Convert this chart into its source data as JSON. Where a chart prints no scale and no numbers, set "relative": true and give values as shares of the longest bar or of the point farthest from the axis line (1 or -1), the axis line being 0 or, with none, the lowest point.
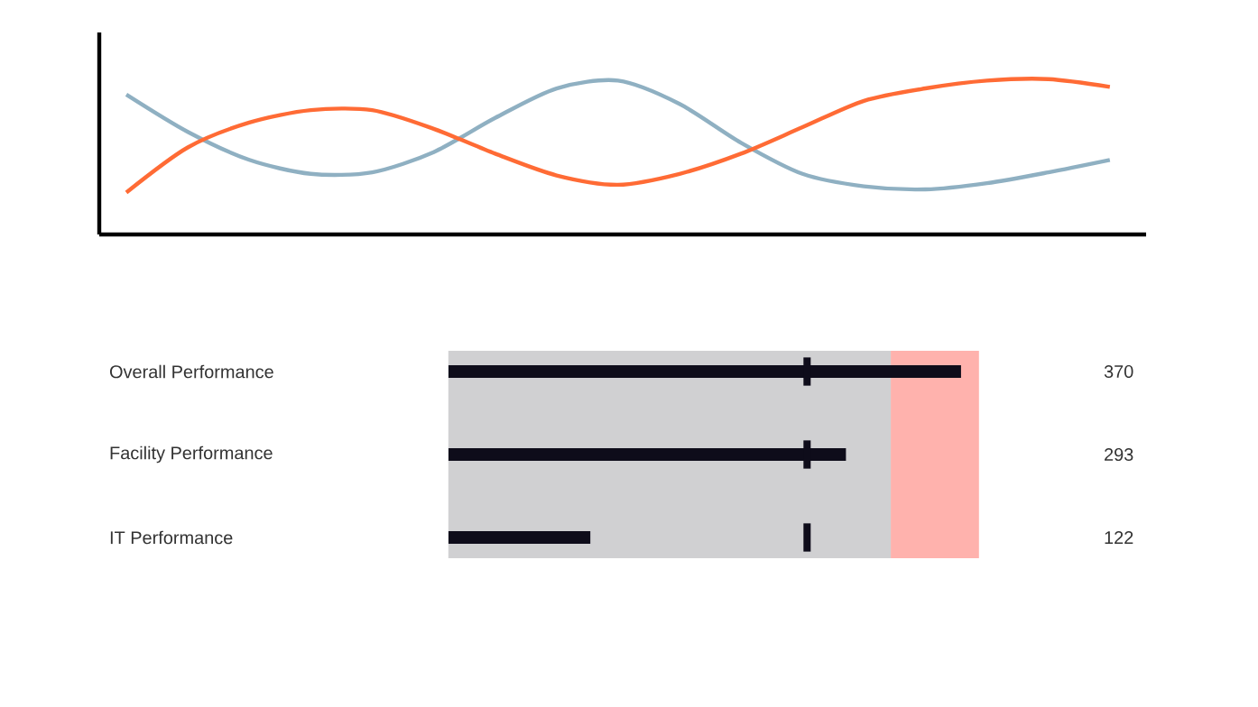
{
  "chart_data": [
    {
      "type": "line",
      "relative": true,
      "categories": [
        null,
        null,
        null,
        null,
        null,
        null,
        null,
        null,
        null,
        null,
        null,
        null,
        null,
        null,
        null,
        null,
        null
      ],
      "series": [
        {
          "color": "#8fb0c2",
          "values": [
            0.9,
            0.66,
            0.48,
            0.39,
            0.4,
            0.53,
            0.75,
            0.94,
            0.99,
            0.84,
            0.59,
            0.39,
            0.31,
            0.29,
            0.33,
            0.4,
            0.48
          ]
        },
        {
          "color": "#ff6b35",
          "values": [
            0.27,
            0.56,
            0.72,
            0.8,
            0.8,
            0.68,
            0.52,
            0.38,
            0.32,
            0.39,
            0.52,
            0.69,
            0.86,
            0.94,
            0.99,
            1.0,
            0.95
          ]
        }
      ]
    },
    {
      "type": "bar",
      "orientation": "horizontal",
      "categories": [
        "Overall Performance",
        "Facility Performance",
        "IT Performance"
      ],
      "values": [
        370,
        293,
        122
      ],
      "color": "#0e0c1a",
      "data_labels": true,
      "tick_labels": "y",
      "xlim": [
        27,
        382
      ],
      "bands": [
        {
          "axis": "x",
          "from": 27,
          "to": 323,
          "color": "#d0d0d2"
        },
        {
          "axis": "x",
          "from": 323,
          "to": 382,
          "color": "#ffb2ad"
        }
      ],
      "ref_lines": [
        {
          "axis": "x",
          "value": 267,
          "color": "#0e0c1a"
        }
      ]
    }
  ]
}
